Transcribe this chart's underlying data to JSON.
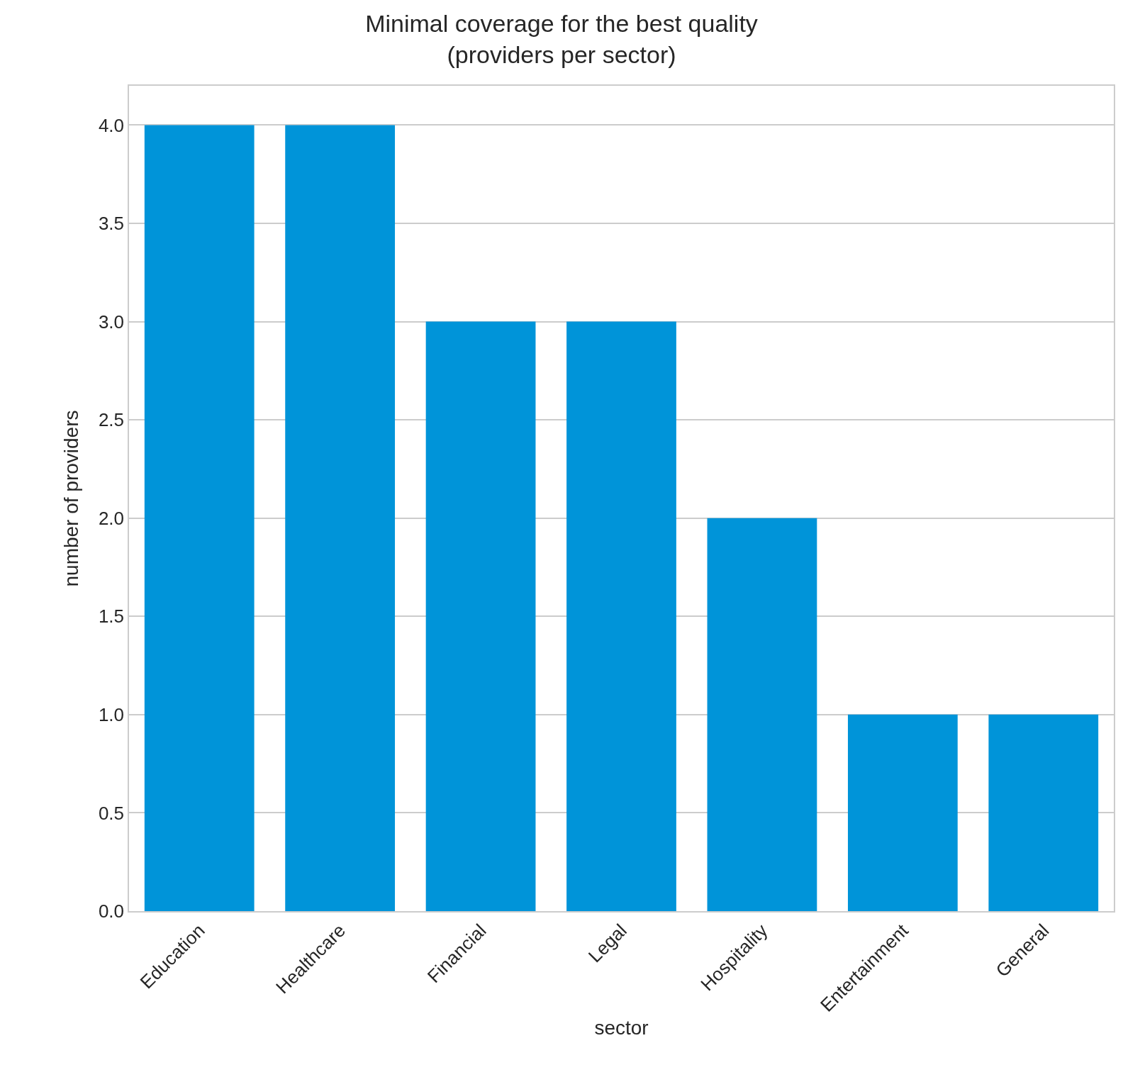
{
  "chart_data": {
    "type": "bar",
    "title": "Minimal coverage for the best quality\n(providers per sector)",
    "xlabel": "sector",
    "ylabel": "number of providers",
    "categories": [
      "Education",
      "Healthcare",
      "Financial",
      "Legal",
      "Hospitality",
      "Entertainment",
      "General"
    ],
    "values": [
      4,
      4,
      3,
      3,
      2,
      1,
      1
    ],
    "color": "#0094d9",
    "ylim": [
      0,
      4.2
    ],
    "yticks": [
      {
        "value": 0,
        "label": "0.0"
      },
      0.5,
      {
        "value": 1,
        "label": "1.0"
      },
      1.5,
      {
        "value": 2,
        "label": "2.0"
      },
      2.5,
      {
        "value": 3,
        "label": "3.0"
      },
      3.5,
      {
        "value": 4,
        "label": "4.0"
      }
    ],
    "grid": "y"
  }
}
